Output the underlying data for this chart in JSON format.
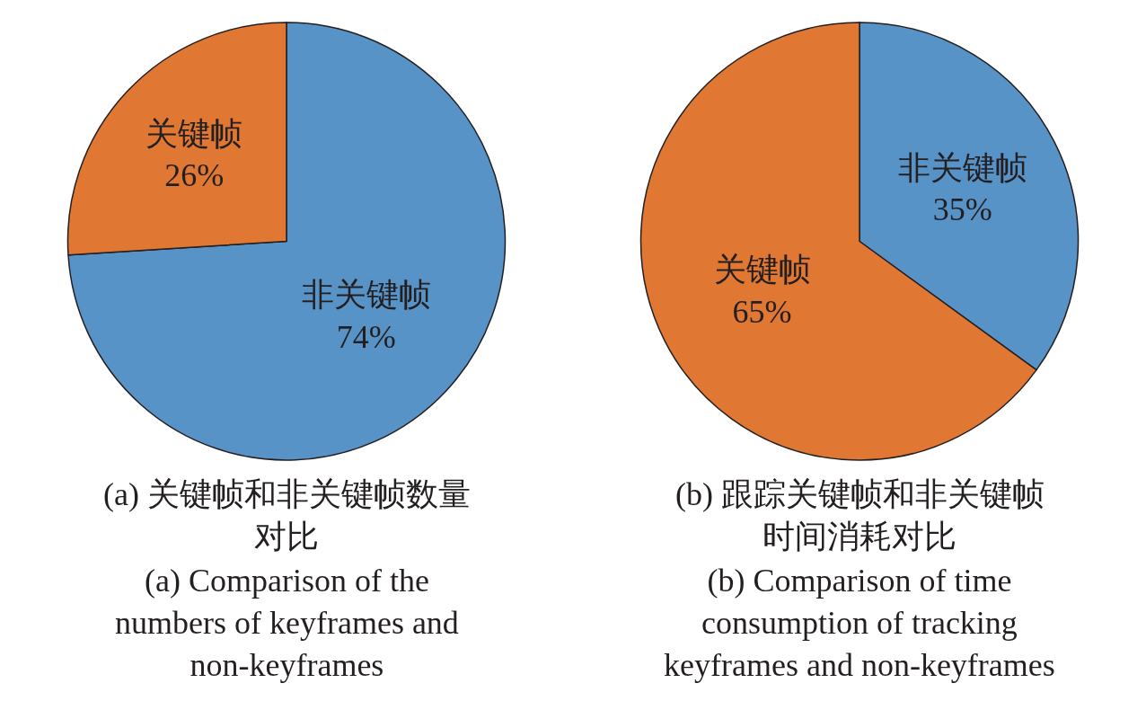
{
  "chart_data": [
    {
      "type": "pie",
      "title": "(a) 关键帧和非关键帧数量对比",
      "subtitle": "(a) Comparison of the numbers of keyframes and non-keyframes",
      "categories": [
        "非关键帧",
        "关键帧"
      ],
      "values": [
        74,
        26
      ],
      "value_labels": [
        "74%",
        "26%"
      ],
      "colors": [
        "#5893c8",
        "#e07834"
      ]
    },
    {
      "type": "pie",
      "title": "(b) 跟踪关键帧和非关键帧时间消耗对比",
      "subtitle": "(b) Comparison of time consumption of tracking keyframes and non-keyframes",
      "categories": [
        "非关键帧",
        "关键帧"
      ],
      "values": [
        35,
        65
      ],
      "value_labels": [
        "35%",
        "65%"
      ],
      "colors": [
        "#5893c8",
        "#e07834"
      ]
    }
  ]
}
